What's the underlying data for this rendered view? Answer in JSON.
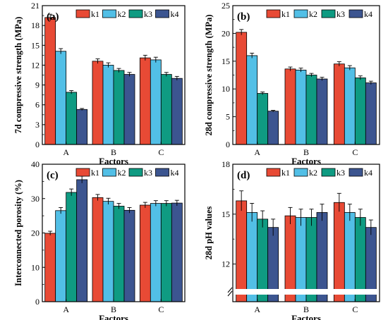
{
  "chart_data": [
    {
      "type": "bar",
      "panel_label": "(a)",
      "title": "",
      "xlabel": "Factors",
      "ylabel": "7d compressive strength (MPa)",
      "categories": [
        "A",
        "B",
        "C"
      ],
      "ylim": [
        0,
        21
      ],
      "yticks": [
        0,
        3,
        6,
        9,
        12,
        15,
        18,
        21
      ],
      "yticklabels": [
        "0",
        "3",
        "6",
        "9",
        "12",
        "15",
        "18",
        "21"
      ],
      "grid": false,
      "legend": "top-right",
      "series": [
        {
          "name": "k1",
          "values": [
            19.2,
            12.6,
            13.1
          ],
          "errors": [
            0.5,
            0.35,
            0.4
          ]
        },
        {
          "name": "k2",
          "values": [
            14.1,
            12.0,
            12.8
          ],
          "errors": [
            0.4,
            0.35,
            0.4
          ]
        },
        {
          "name": "k3",
          "values": [
            7.9,
            11.2,
            10.6
          ],
          "errors": [
            0.25,
            0.3,
            0.3
          ]
        },
        {
          "name": "k4",
          "values": [
            5.3,
            10.6,
            10.0
          ],
          "errors": [
            0.15,
            0.3,
            0.3
          ]
        }
      ]
    },
    {
      "type": "bar",
      "panel_label": "(b)",
      "title": "",
      "xlabel": "Factors",
      "ylabel": "28d compressive strength (MPa)",
      "categories": [
        "A",
        "B",
        "C"
      ],
      "ylim": [
        0,
        25
      ],
      "yticks": [
        0,
        5,
        10,
        15,
        20,
        25
      ],
      "yticklabels": [
        "0",
        "5",
        "10",
        "15",
        "20",
        "25"
      ],
      "grid": false,
      "legend": "top-right",
      "series": [
        {
          "name": "k1",
          "values": [
            20.2,
            13.6,
            14.5
          ],
          "errors": [
            0.5,
            0.35,
            0.4
          ]
        },
        {
          "name": "k2",
          "values": [
            16.0,
            13.4,
            13.8
          ],
          "errors": [
            0.45,
            0.35,
            0.4
          ]
        },
        {
          "name": "k3",
          "values": [
            9.2,
            12.5,
            12.0
          ],
          "errors": [
            0.25,
            0.3,
            0.35
          ]
        },
        {
          "name": "k4",
          "values": [
            6.0,
            11.8,
            11.1
          ],
          "errors": [
            0.15,
            0.3,
            0.3
          ]
        }
      ]
    },
    {
      "type": "bar",
      "panel_label": "(c)",
      "title": "",
      "xlabel": "Factors",
      "ylabel": "Interconnected porosity (%)",
      "categories": [
        "A",
        "B",
        "C"
      ],
      "ylim": [
        0,
        40
      ],
      "yticks": [
        0,
        10,
        20,
        30,
        40
      ],
      "yticklabels": [
        "0",
        "10",
        "20",
        "30",
        "40"
      ],
      "grid": false,
      "legend": "top-right",
      "series": [
        {
          "name": "k1",
          "values": [
            19.9,
            30.3,
            28.1
          ],
          "errors": [
            0.6,
            0.9,
            0.8
          ]
        },
        {
          "name": "k2",
          "values": [
            26.5,
            29.2,
            28.6
          ],
          "errors": [
            0.9,
            0.9,
            0.8
          ]
        },
        {
          "name": "k3",
          "values": [
            31.8,
            27.8,
            28.6
          ],
          "errors": [
            1.0,
            0.8,
            0.8
          ]
        },
        {
          "name": "k4",
          "values": [
            35.5,
            26.6,
            28.7
          ],
          "errors": [
            1.0,
            0.8,
            0.8
          ]
        }
      ]
    },
    {
      "type": "bar",
      "panel_label": "(d)",
      "title": "",
      "xlabel": "Factors",
      "ylabel": "28d pH values",
      "categories": [
        "A",
        "B",
        "C"
      ],
      "ylim": [
        0,
        18
      ],
      "axis_break": true,
      "lower_segment": [
        0,
        0.6
      ],
      "upper_segment": [
        10.5,
        18
      ],
      "yticks": [
        12,
        15,
        18
      ],
      "yticklabels": [
        "12",
        "15",
        "18"
      ],
      "grid": false,
      "legend": "top-right",
      "series": [
        {
          "name": "k1",
          "values": [
            15.8,
            14.9,
            15.7
          ],
          "errors": [
            0.6,
            0.5,
            0.55
          ]
        },
        {
          "name": "k2",
          "values": [
            15.1,
            14.8,
            15.1
          ],
          "errors": [
            0.55,
            0.5,
            0.5
          ]
        },
        {
          "name": "k3",
          "values": [
            14.7,
            14.8,
            14.8
          ],
          "errors": [
            0.5,
            0.5,
            0.5
          ]
        },
        {
          "name": "k4",
          "values": [
            14.2,
            15.1,
            14.2
          ],
          "errors": [
            0.5,
            0.5,
            0.45
          ]
        }
      ]
    }
  ],
  "colors": {
    "k1": "#e84a35",
    "k2": "#52bfe6",
    "k3": "#0f9b82",
    "k4": "#3c5590",
    "axis": "#000000",
    "break_band": "#ffffff"
  }
}
